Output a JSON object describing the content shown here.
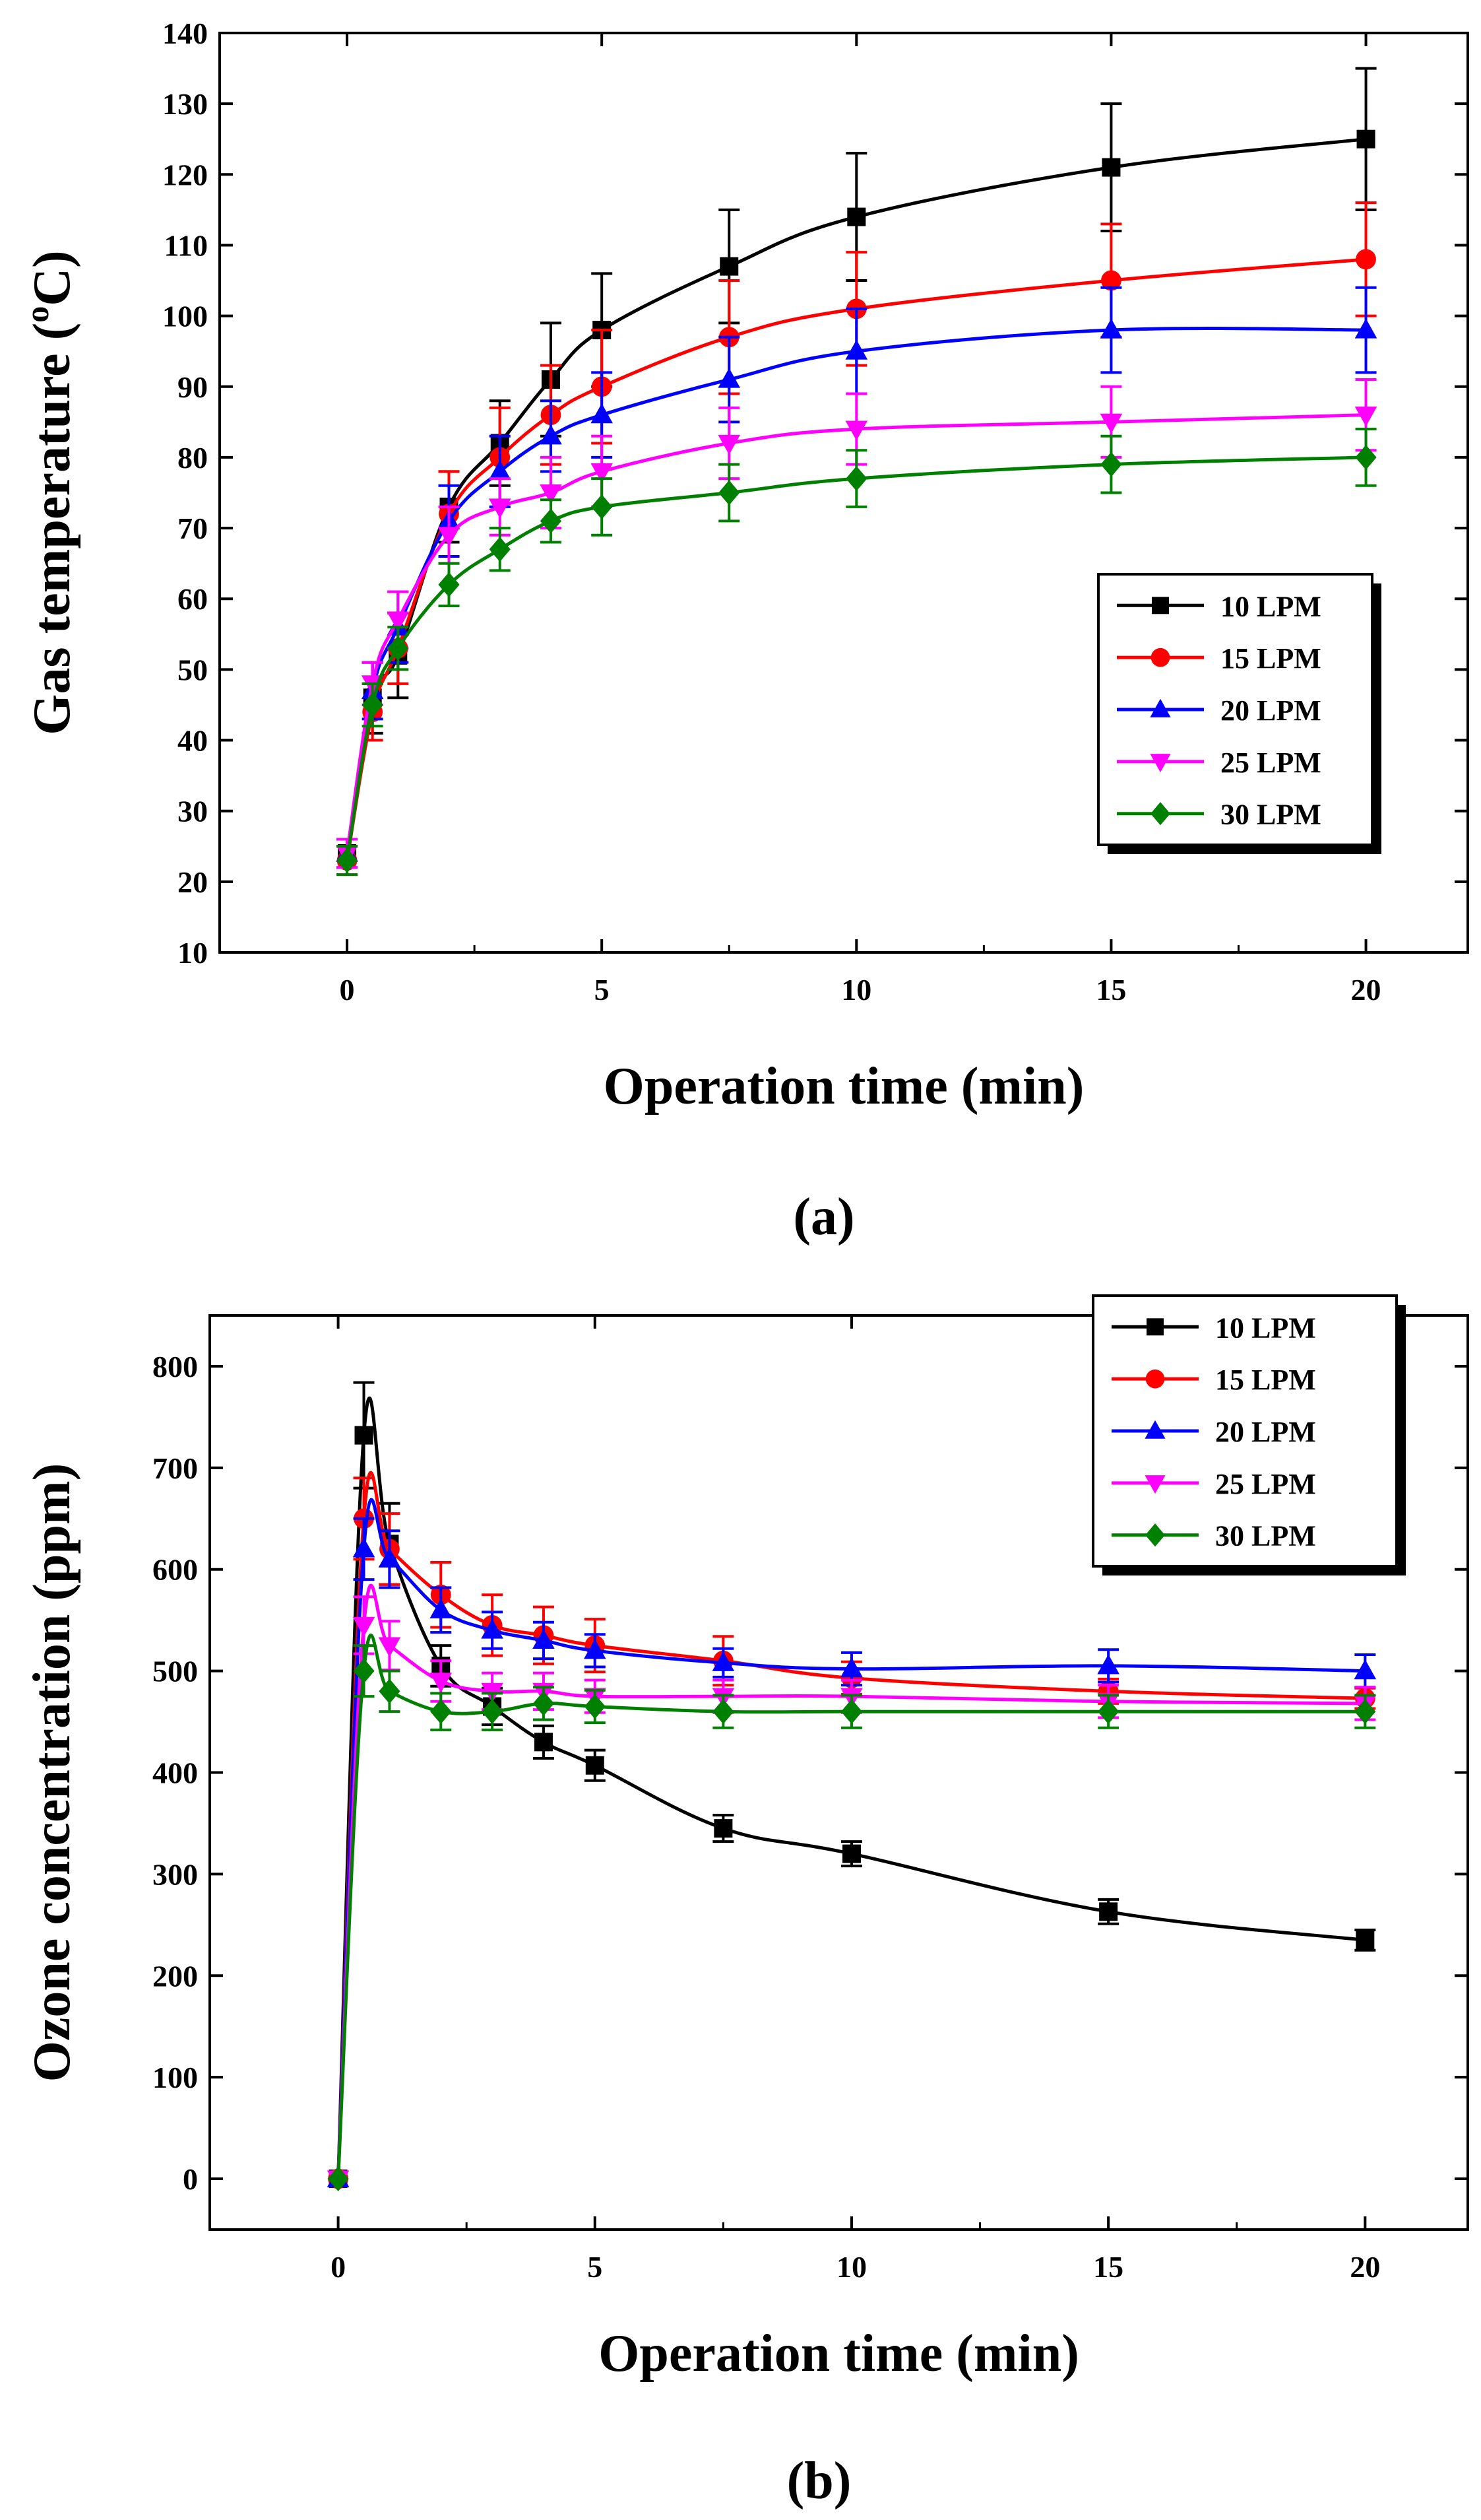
{
  "chart_data": [
    {
      "type": "line",
      "panel_label": "(a)",
      "xlabel": "Operation time (min)",
      "ylabel_main": "Gas temperature (",
      "ylabel_sup": "o",
      "ylabel_end": "C)",
      "xlim": [
        -2.5,
        22
      ],
      "ylim": [
        10,
        140
      ],
      "xticks": [
        0,
        5,
        10,
        15,
        20
      ],
      "yticks": [
        10,
        20,
        30,
        40,
        50,
        60,
        70,
        80,
        90,
        100,
        110,
        120,
        130,
        140
      ],
      "legend_position": "lower-right",
      "x": [
        0,
        0.5,
        1,
        2,
        3,
        4,
        5,
        7.5,
        10,
        15,
        20
      ],
      "series": [
        {
          "name": "10 LPM",
          "color": "#000000",
          "marker": "square",
          "values": [
            24,
            46,
            52,
            73,
            82,
            91,
            98,
            107,
            114,
            121,
            125
          ],
          "errors": [
            2,
            5,
            6,
            5,
            6,
            8,
            8,
            8,
            9,
            9,
            10
          ]
        },
        {
          "name": "15 LPM",
          "color": "#ff0000",
          "marker": "circle",
          "values": [
            23,
            44,
            53,
            72,
            80,
            86,
            90,
            97,
            101,
            105,
            108
          ],
          "errors": [
            2,
            4,
            5,
            6,
            7,
            7,
            8,
            8,
            8,
            8,
            8
          ]
        },
        {
          "name": "20 LPM",
          "color": "#0000ff",
          "marker": "triangle-up",
          "values": [
            24,
            47,
            56,
            71,
            78,
            83,
            86,
            91,
            95,
            98,
            98
          ],
          "errors": [
            2,
            4,
            5,
            5,
            5,
            5,
            6,
            6,
            6,
            6,
            6
          ]
        },
        {
          "name": "25 LPM",
          "color": "#ff00ff",
          "marker": "triangle-down",
          "values": [
            24,
            48,
            57,
            69,
            73,
            75,
            78,
            82,
            84,
            85,
            86
          ],
          "errors": [
            2,
            3,
            4,
            4,
            4,
            5,
            5,
            5,
            5,
            5,
            5
          ]
        },
        {
          "name": "30 LPM",
          "color": "#008000",
          "marker": "diamond",
          "values": [
            23,
            45,
            53,
            62,
            67,
            71,
            73,
            75,
            77,
            79,
            80
          ],
          "errors": [
            2,
            3,
            3,
            3,
            3,
            3,
            4,
            4,
            4,
            4,
            4
          ]
        }
      ]
    },
    {
      "type": "line",
      "panel_label": "(b)",
      "xlabel": "Operation time (min)",
      "ylabel": "Ozone concentration (ppm)",
      "xlim": [
        -2.5,
        22
      ],
      "ylim": [
        -50,
        850
      ],
      "xticks": [
        0,
        5,
        10,
        15,
        20
      ],
      "yticks": [
        0,
        100,
        200,
        300,
        400,
        500,
        600,
        700,
        800
      ],
      "legend_position": "top-right",
      "x": [
        0,
        0.5,
        1,
        2,
        3,
        4,
        5,
        7.5,
        10,
        15,
        20
      ],
      "series": [
        {
          "name": "10 LPM",
          "color": "#000000",
          "marker": "square",
          "values": [
            0,
            732,
            625,
            505,
            465,
            430,
            407,
            345,
            320,
            263,
            235
          ],
          "errors": [
            0,
            52,
            40,
            20,
            18,
            16,
            15,
            13,
            12,
            12,
            10
          ]
        },
        {
          "name": "15 LPM",
          "color": "#ff0000",
          "marker": "circle",
          "values": [
            0,
            650,
            620,
            575,
            545,
            535,
            525,
            510,
            493,
            480,
            473
          ],
          "errors": [
            0,
            40,
            35,
            32,
            30,
            28,
            26,
            24,
            16,
            12,
            10
          ]
        },
        {
          "name": "20 LPM",
          "color": "#0000ff",
          "marker": "triangle-up",
          "values": [
            0,
            620,
            610,
            560,
            540,
            530,
            520,
            508,
            502,
            505,
            500
          ],
          "errors": [
            0,
            30,
            28,
            22,
            18,
            18,
            16,
            14,
            16,
            16,
            16
          ]
        },
        {
          "name": "25 LPM",
          "color": "#ff00ff",
          "marker": "triangle-down",
          "values": [
            0,
            545,
            525,
            490,
            480,
            480,
            475,
            475,
            475,
            470,
            468
          ],
          "errors": [
            0,
            28,
            24,
            20,
            18,
            18,
            16,
            16,
            16,
            16,
            16
          ]
        },
        {
          "name": "30 LPM",
          "color": "#008000",
          "marker": "diamond",
          "values": [
            0,
            500,
            480,
            460,
            460,
            468,
            465,
            460,
            460,
            460,
            460
          ],
          "errors": [
            0,
            25,
            20,
            18,
            18,
            16,
            16,
            16,
            16,
            16,
            16
          ]
        }
      ]
    }
  ]
}
